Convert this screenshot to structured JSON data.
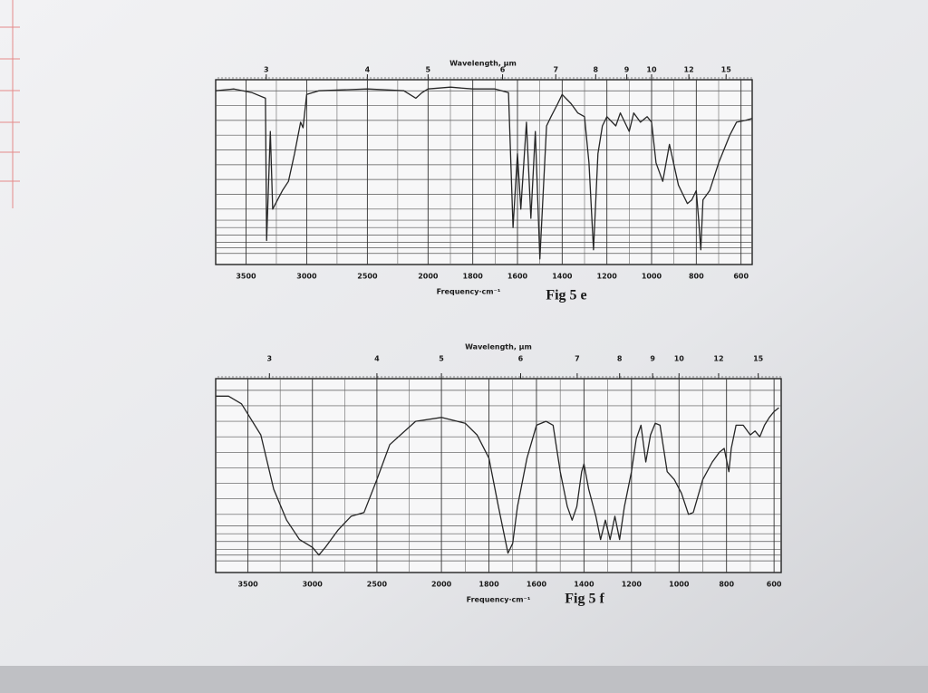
{
  "chart_data": [
    {
      "type": "line",
      "title": "Fig 5 e",
      "xlabel": "Frequency·cm⁻¹",
      "x2label": "Wavelength, μm",
      "xlim": [
        3750,
        550
      ],
      "xticks": [
        3500,
        3000,
        2500,
        2000,
        1800,
        1600,
        1400,
        1200,
        1000,
        800,
        600
      ],
      "x2ticks": [
        3,
        4,
        5,
        6,
        7,
        8,
        9,
        10,
        12,
        15
      ],
      "ylim": [
        0,
        100
      ],
      "grid": true,
      "color": "#262626",
      "x": [
        3750,
        3600,
        3450,
        3340,
        3330,
        3300,
        3280,
        3200,
        3150,
        3100,
        3050,
        3030,
        3000,
        2900,
        2500,
        2200,
        2100,
        2050,
        2000,
        1900,
        1800,
        1700,
        1640,
        1620,
        1600,
        1585,
        1560,
        1540,
        1520,
        1500,
        1470,
        1450,
        1420,
        1400,
        1360,
        1330,
        1300,
        1280,
        1260,
        1240,
        1220,
        1200,
        1160,
        1140,
        1100,
        1080,
        1050,
        1020,
        1000,
        980,
        950,
        920,
        880,
        860,
        840,
        820,
        800,
        790,
        780,
        770,
        740,
        700,
        650,
        620,
        580,
        550
      ],
      "values": [
        94,
        95,
        93,
        90,
        13,
        72,
        30,
        40,
        45,
        60,
        77,
        74,
        92,
        94,
        95,
        94,
        90,
        93,
        95,
        96,
        95,
        95,
        93,
        20,
        60,
        30,
        77,
        25,
        72,
        3,
        75,
        80,
        87,
        92,
        87,
        82,
        80,
        55,
        8,
        60,
        75,
        80,
        75,
        82,
        72,
        82,
        77,
        80,
        77,
        55,
        45,
        65,
        43,
        38,
        33,
        35,
        40,
        25,
        8,
        35,
        40,
        55,
        70,
        77,
        78,
        79
      ]
    },
    {
      "type": "line",
      "title": "Fig 5 f",
      "xlabel": "Frequency·cm⁻¹",
      "x2label": "Wavelength, μm",
      "xlim": [
        3750,
        570
      ],
      "xticks": [
        3500,
        3000,
        2500,
        2000,
        1800,
        1600,
        1400,
        1200,
        1000,
        800,
        600
      ],
      "x2ticks": [
        3,
        4,
        5,
        6,
        7,
        8,
        9,
        10,
        12,
        15
      ],
      "ylim": [
        0,
        100
      ],
      "grid": true,
      "color": "#262626",
      "x": [
        3750,
        3650,
        3550,
        3400,
        3300,
        3200,
        3100,
        3000,
        2950,
        2900,
        2800,
        2700,
        2600,
        2500,
        2400,
        2300,
        2200,
        2000,
        1900,
        1850,
        1800,
        1760,
        1720,
        1700,
        1680,
        1640,
        1600,
        1560,
        1530,
        1500,
        1470,
        1450,
        1430,
        1410,
        1400,
        1380,
        1350,
        1330,
        1310,
        1290,
        1270,
        1250,
        1230,
        1200,
        1180,
        1160,
        1140,
        1120,
        1100,
        1080,
        1050,
        1020,
        990,
        960,
        940,
        900,
        860,
        830,
        810,
        790,
        780,
        760,
        730,
        700,
        680,
        660,
        640,
        620,
        600,
        580
      ],
      "values": [
        91,
        91,
        87,
        71,
        43,
        27,
        17,
        13,
        9,
        13,
        22,
        29,
        31,
        48,
        66,
        72,
        78,
        80,
        77,
        71,
        59,
        34,
        10,
        15,
        34,
        59,
        76,
        78,
        76,
        52,
        34,
        27,
        34,
        52,
        56,
        43,
        29,
        17,
        27,
        17,
        29,
        17,
        34,
        52,
        69,
        76,
        57,
        71,
        77,
        76,
        52,
        48,
        41,
        30,
        31,
        48,
        57,
        62,
        64,
        52,
        64,
        76,
        76,
        71,
        73,
        70,
        76,
        80,
        83,
        85
      ]
    }
  ]
}
